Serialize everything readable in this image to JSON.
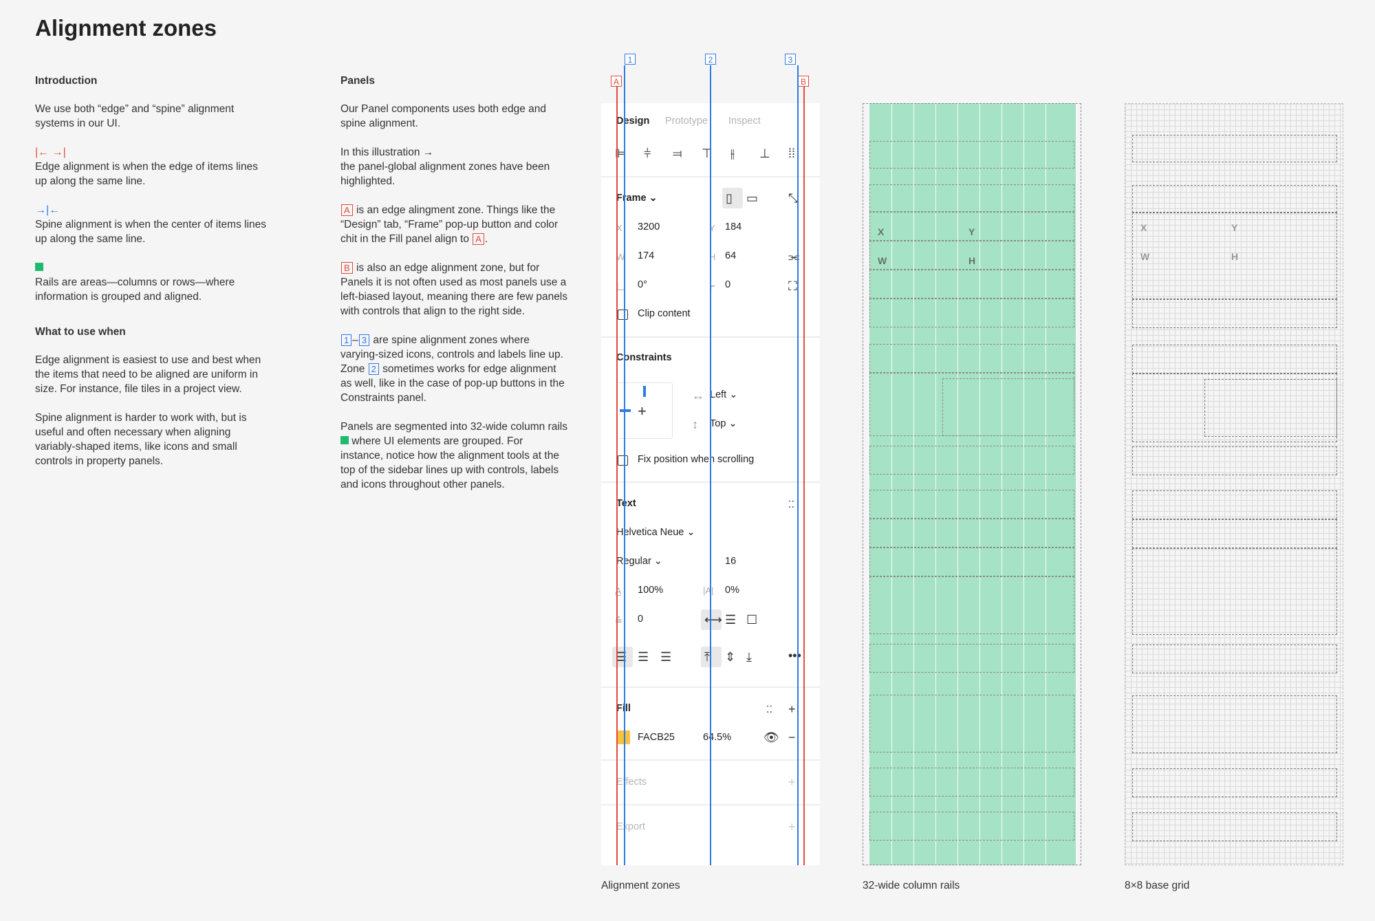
{
  "title": "Alignment zones",
  "intro": {
    "heading": "Introduction",
    "p1": "We use both “edge” and “spine” alignment systems in our UI.",
    "edge_glyph": "|← →|",
    "edge_text": "Edge alignment is when the edge of items lines up along the same line.",
    "spine_glyph": "→|←",
    "spine_text": "Spine alignment is when the center of items lines up along the same line.",
    "rails_text": "Rails are areas—columns or rows—where information is grouped and aligned.",
    "when_heading": "What to use when",
    "when_p1": "Edge alignment is easiest to use and best when the items that need to be aligned are uniform in size. For instance, file tiles in a project view.",
    "when_p2": "Spine alignment is harder to work with, but is useful and often necessary when aligning variably-shaped items, like icons and small controls in property panels."
  },
  "panels": {
    "heading": "Panels",
    "p1": "Our Panel components uses both edge and spine alignment.",
    "p2a": "In this illustration →",
    "p2b": "the panel-global alignment zones have been highlighted.",
    "tagA": "A",
    "tagB": "B",
    "tag1": "1",
    "tag2": "2",
    "tag3": "3",
    "dash": "–",
    "p3": " is an edge alingment zone. Things like the “Design” tab, “Frame” pop-up button and color chit in the Fill panel align to ",
    "p3end": ".",
    "p4": " is also an edge alignment zone, but for Panels it is not often used as most panels use a left-biased layout, meaning there are few panels with controls that align to the right side.",
    "p5a": " are spine alignment zones where varying-sized icons, controls and labels line up. Zone ",
    "p5b": " sometimes works for edge alignment as well, like in the case of pop-up buttons in the Constraints panel.",
    "p6a": "Panels are segmented into 32-wide column rails ",
    "p6b": " where UI elements are grouped. For instance, notice how the alignment tools at the top of the sidebar lines up with controls, labels and icons throughout other panels."
  },
  "sidebar": {
    "tabs": [
      "Design",
      "Prototype",
      "Inspect"
    ],
    "frame": "Frame ⌄",
    "x_label": "X",
    "x_val": "3200",
    "y_label": "Y",
    "y_val": "184",
    "w_label": "W",
    "w_val": "174",
    "h_label": "H",
    "h_val": "64",
    "rot_val": "0°",
    "radius_val": "0",
    "clip": "Clip content",
    "constraints": "Constraints",
    "left": "Left ⌄",
    "top": "Top ⌄",
    "fix": "Fix position when scrolling",
    "text": "Text",
    "font": "Helvetica Neue ⌄",
    "weight": "Regular ⌄",
    "size": "16",
    "line_height": "100%",
    "letter": "0%",
    "para": "0",
    "fill": "Fill",
    "hex": "FACB25",
    "opacity": "64.5%",
    "effects": "Effects",
    "export": "Export",
    "fill_color": "#f7c33f"
  },
  "zones": {
    "A": "A",
    "B": "B",
    "z1": "1",
    "z2": "2",
    "z3": "3",
    "red": "#e24b3b",
    "blue": "#2d7be5"
  },
  "rails_ghost": {
    "x": "X",
    "y": "Y",
    "w": "W",
    "h": "H"
  },
  "captions": {
    "c1": "Alignment zones",
    "c2": "32-wide column rails",
    "c3": "8×8 base grid"
  }
}
